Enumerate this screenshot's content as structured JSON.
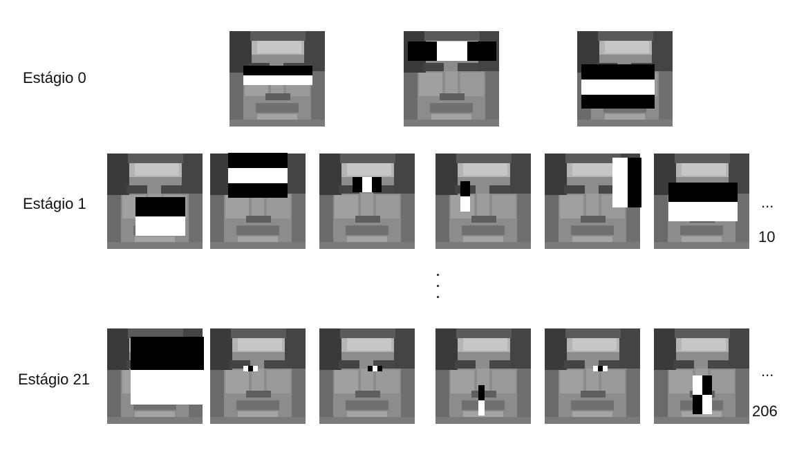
{
  "stages": [
    {
      "label": "Estágio 0"
    },
    {
      "label": "Estágio 1",
      "ellipsis": "...",
      "count": "10"
    },
    {
      "label": "Estágio 21",
      "ellipsis": "...",
      "count": "206"
    }
  ],
  "colors": {
    "feature_dark": "#000000",
    "feature_light": "#ffffff",
    "face_tone": "#8a8a8a"
  }
}
